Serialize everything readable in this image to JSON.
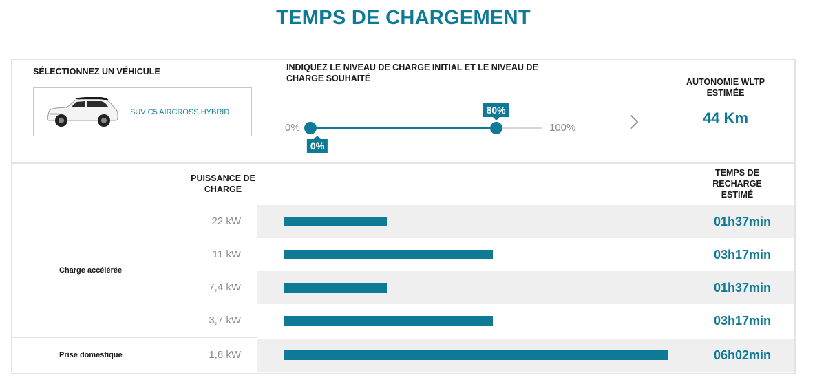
{
  "title": "TEMPS DE CHARGEMENT",
  "vehicle": {
    "label": "SÉLECTIONNEZ UN VÉHICULE",
    "name": "SUV C5 AIRCROSS HYBRID"
  },
  "charge": {
    "label": "INDIQUEZ LE NIVEAU DE CHARGE INITIAL ET LE NIVEAU DE CHARGE SOUHAITÉ",
    "min_label": "0%",
    "max_label": "100%",
    "initial_value": 0,
    "initial_label": "0%",
    "target_value": 80,
    "target_label": "80%"
  },
  "autonomy": {
    "label": "AUTONOMIE WLTP ESTIMÉE",
    "value": "44 Km"
  },
  "table": {
    "power_header": "PUISSANCE DE CHARGE",
    "time_header": "TEMPS DE RECHARGE ESTIMÉ",
    "groups": {
      "accelerated": "Charge accélérée",
      "domestic": "Prise domestique"
    },
    "rows": [
      {
        "power": "22 kW",
        "time": "01h37min",
        "minutes": 97
      },
      {
        "power": "11 kW",
        "time": "03h17min",
        "minutes": 197
      },
      {
        "power": "7,4 kW",
        "time": "01h37min",
        "minutes": 97
      },
      {
        "power": "3,7 kW",
        "time": "03h17min",
        "minutes": 197
      },
      {
        "power": "1,8 kW",
        "time": "06h02min",
        "minutes": 362
      }
    ]
  },
  "colors": {
    "accent": "#0f7a96",
    "row_shade": "#efefef",
    "border": "#e3e3e3"
  }
}
